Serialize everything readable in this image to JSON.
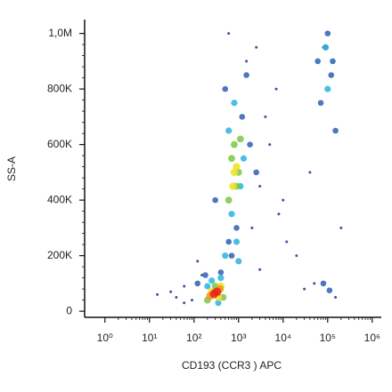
{
  "chart_data": {
    "type": "scatter",
    "x_label": "CD193 (CCR3 ) APC",
    "y_label": "SS-A",
    "xscale": "log",
    "xlim": [
      0.35,
      1600000
    ],
    "xticks": [
      {
        "value": 1,
        "label": "10⁰"
      },
      {
        "value": 10,
        "label": "10¹"
      },
      {
        "value": 100,
        "label": "10²"
      },
      {
        "value": 1000,
        "label": "10³"
      },
      {
        "value": 10000,
        "label": "10⁴"
      },
      {
        "value": 100000,
        "label": "10⁵"
      },
      {
        "value": 1000000,
        "label": "10⁶"
      }
    ],
    "ylim": [
      -22000,
      1050000
    ],
    "yticks": [
      0,
      {
        "value": 200000,
        "label": "200K"
      },
      {
        "value": 400000,
        "label": "400K"
      },
      {
        "value": 600000,
        "label": "600K"
      },
      {
        "value": 800000,
        "label": "800K"
      },
      {
        "value": 1000000,
        "label": "1,0M"
      }
    ],
    "series": [
      {
        "color": "#23308f",
        "x": [
          15,
          40,
          60,
          90,
          150,
          30,
          2000,
          3000,
          5000,
          8000,
          20000,
          40000,
          50000,
          7000,
          1500,
          2500,
          4000,
          60,
          120,
          3000,
          10000,
          200000,
          150000,
          80000,
          30000,
          600,
          12000
        ],
        "values": [
          60000,
          50000,
          90000,
          40000,
          130000,
          70000,
          300000,
          450000,
          600000,
          350000,
          200000,
          500000,
          100000,
          800000,
          900000,
          950000,
          700000,
          30000,
          180000,
          150000,
          400000,
          300000,
          50000,
          950000,
          80000,
          1000000,
          250000
        ]
      },
      {
        "color": "#2f5fb3",
        "x": [
          120,
          180,
          400,
          700,
          900,
          1200,
          1800,
          300,
          500,
          2500,
          1500,
          600,
          90000,
          120000,
          70000,
          150000,
          100000,
          60000,
          130000,
          80000,
          110000
        ],
        "values": [
          100000,
          130000,
          140000,
          200000,
          300000,
          700000,
          600000,
          400000,
          800000,
          500000,
          850000,
          250000,
          950000,
          850000,
          750000,
          650000,
          1000000,
          900000,
          900000,
          100000,
          75000
        ]
      },
      {
        "color": "#2bb3df",
        "x": [
          200,
          350,
          500,
          700,
          900,
          600,
          1100,
          800,
          1300,
          400,
          250,
          1000,
          100000,
          90000
        ],
        "values": [
          90000,
          30000,
          200000,
          350000,
          250000,
          650000,
          450000,
          750000,
          550000,
          120000,
          110000,
          180000,
          800000,
          950000
        ]
      },
      {
        "color": "#7cc544",
        "x": [
          600,
          800,
          1000,
          700,
          900,
          300,
          200,
          450,
          1100
        ],
        "values": [
          400000,
          600000,
          500000,
          550000,
          450000,
          90000,
          40000,
          50000,
          620000
        ]
      },
      {
        "color": "#eee21d",
        "x": [
          800,
          900,
          750,
          250,
          350,
          400
        ],
        "values": [
          500000,
          520000,
          450000,
          70000,
          50000,
          90000
        ]
      },
      {
        "color": "#f39320",
        "x": [
          300,
          230,
          380
        ],
        "values": [
          70000,
          55000,
          80000
        ]
      },
      {
        "color": "#e5231b",
        "x": [
          280,
          330
        ],
        "values": [
          62000,
          70000
        ]
      }
    ]
  }
}
